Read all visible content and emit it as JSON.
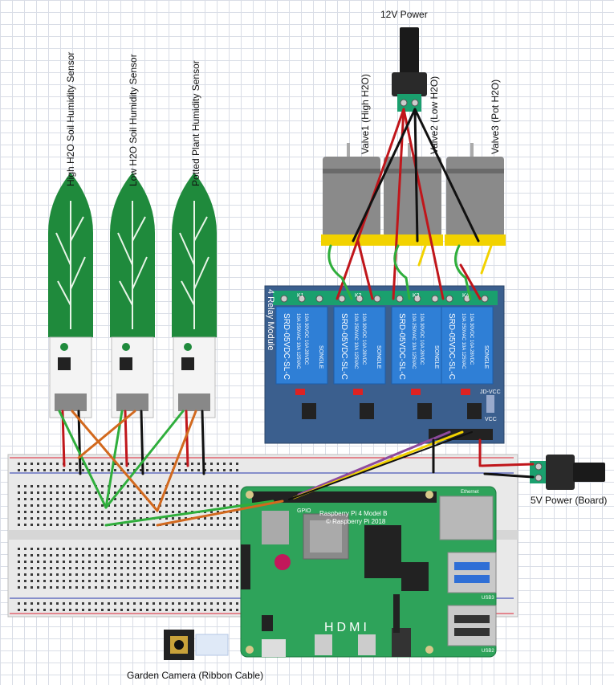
{
  "labels": {
    "power_12v": "12V Power",
    "power_5v": "5V Power (Board)",
    "camera": "Garden Camera (Ribbon Cable)",
    "sensor_high": "High H2O Soil Humidity Sensor",
    "sensor_low": "Low H2O Soil Humidity Sensor",
    "sensor_pot": "Potted Plant Humidity Sensor",
    "valve1": "Valve1 (High H2O)",
    "valve2": "Valve2 (Low H2O)",
    "valve3": "Valve3 (Pot H2O)"
  },
  "relay_module": {
    "side_label": "4 Relay Module",
    "relay_model": "SRD-05VDC-SL-C",
    "relay_brand": "SONGLE",
    "relay_rating_1": "10A 250VAC 10A 125VAC",
    "relay_rating_2": "10A 30VDC 10A 28VDC",
    "channels": [
      "K1",
      "K2",
      "K3",
      "K4"
    ],
    "jd_vcc": "JD-VCC",
    "vcc": "VCC"
  },
  "raspberry_pi": {
    "model_line": "Raspberry Pi 4 Model B",
    "copyright_line": "© Raspberry Pi 2018",
    "gpio": "GPIO",
    "ethernet": "Ethernet",
    "usb2": "USB2",
    "usb3": "USB3",
    "hdmi": "HDMI"
  },
  "colors": {
    "pcb_green": "#1f8a3c",
    "relay_board": "#3b5f8e",
    "relay_blue": "#2f7fd6",
    "pi_green": "#2ea35a",
    "motor_grey": "#8a8a8a",
    "wire_red": "#c0161b",
    "wire_black": "#111111",
    "wire_green": "#2fae3c",
    "wire_orange": "#d2691e",
    "wire_yellow": "#f2d200",
    "wire_purple": "#8e4a9e"
  }
}
